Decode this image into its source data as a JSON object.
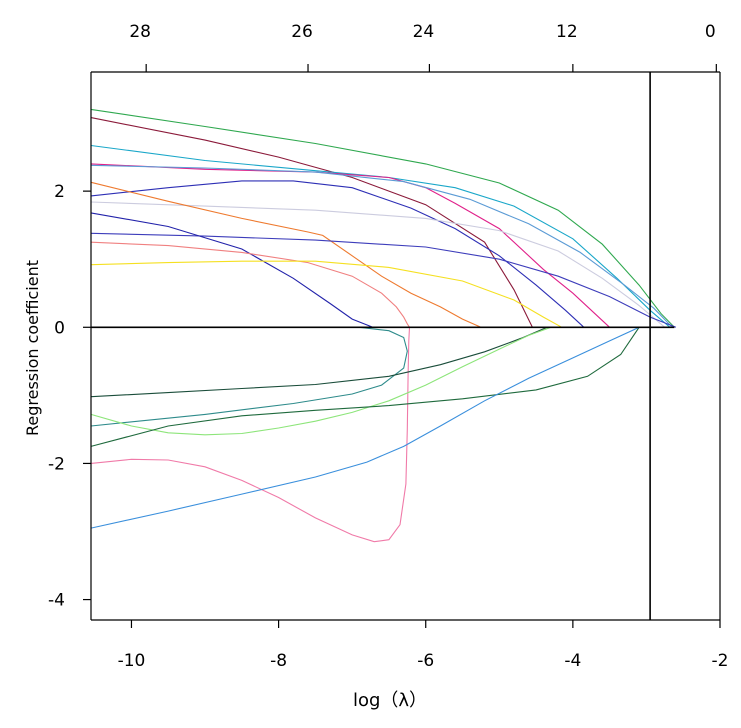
{
  "chart_data": {
    "type": "line",
    "title": "",
    "xlabel": "log（λ）",
    "ylabel": "Regression coefficient",
    "xlim": [
      -10.55,
      -2.0
    ],
    "ylim": [
      -4.3,
      3.75
    ],
    "x_ticks": [
      -10,
      -8,
      -6,
      -4,
      -2
    ],
    "y_ticks": [
      -4,
      -2,
      0,
      2
    ],
    "top_axis_ticks": [
      {
        "x": -9.8,
        "label": "28"
      },
      {
        "x": -7.6,
        "label": "26"
      },
      {
        "x": -5.95,
        "label": "24"
      },
      {
        "x": -4.0,
        "label": "12"
      },
      {
        "x": -2.05,
        "label": "0"
      }
    ],
    "vertical_reference_x": -2.95,
    "zero_line_y": 0,
    "grid": false,
    "legend": "none",
    "series": [
      {
        "color": "#2fa84f",
        "x": [
          -10.55,
          -9.0,
          -7.5,
          -6.0,
          -5.0,
          -4.2,
          -3.6,
          -3.1,
          -2.8,
          -2.62
        ],
        "y": [
          3.2,
          2.95,
          2.7,
          2.4,
          2.12,
          1.72,
          1.22,
          0.62,
          0.2,
          0.0
        ]
      },
      {
        "color": "#8b1a3a",
        "x": [
          -10.55,
          -9.0,
          -8.0,
          -7.0,
          -6.0,
          -5.2,
          -4.8,
          -4.55
        ],
        "y": [
          3.08,
          2.75,
          2.5,
          2.2,
          1.8,
          1.25,
          0.55,
          0.0
        ]
      },
      {
        "color": "#1aa7c9",
        "x": [
          -10.55,
          -9.0,
          -7.5,
          -6.5,
          -5.6,
          -4.8,
          -4.0,
          -3.4,
          -2.95,
          -2.68
        ],
        "y": [
          2.67,
          2.45,
          2.3,
          2.2,
          2.05,
          1.78,
          1.3,
          0.72,
          0.25,
          0.0
        ]
      },
      {
        "color": "#e0218a",
        "x": [
          -10.55,
          -9.0,
          -7.5,
          -6.5,
          -6.0,
          -5.6,
          -5.0,
          -4.4,
          -4.0,
          -3.5
        ],
        "y": [
          2.4,
          2.32,
          2.28,
          2.2,
          2.05,
          1.82,
          1.45,
          0.85,
          0.5,
          0.0
        ]
      },
      {
        "color": "#5b9bd5",
        "x": [
          -10.55,
          -9.0,
          -7.5,
          -6.3,
          -5.4,
          -4.6,
          -3.9,
          -3.3,
          -2.9,
          -2.65
        ],
        "y": [
          2.38,
          2.34,
          2.28,
          2.14,
          1.88,
          1.52,
          1.1,
          0.62,
          0.28,
          0.0
        ]
      },
      {
        "color": "#2d2fb5",
        "x": [
          -10.55,
          -9.5,
          -8.5,
          -7.8,
          -7.0,
          -6.2,
          -5.6,
          -5.0,
          -4.5,
          -4.1,
          -3.85
        ],
        "y": [
          1.93,
          2.05,
          2.15,
          2.15,
          2.05,
          1.75,
          1.45,
          1.05,
          0.62,
          0.25,
          0.0
        ]
      },
      {
        "color": "#ccccdf",
        "x": [
          -10.55,
          -9.0,
          -7.5,
          -6.0,
          -5.0,
          -4.2,
          -3.6,
          -3.1,
          -2.75
        ],
        "y": [
          1.84,
          1.78,
          1.72,
          1.6,
          1.42,
          1.12,
          0.72,
          0.32,
          0.0
        ]
      },
      {
        "color": "#ee7a2f",
        "x": [
          -10.55,
          -9.5,
          -8.5,
          -7.6,
          -7.4,
          -7.0,
          -6.6,
          -6.2,
          -5.8,
          -5.5,
          -5.25
        ],
        "y": [
          2.13,
          1.85,
          1.6,
          1.4,
          1.35,
          1.05,
          0.75,
          0.5,
          0.3,
          0.12,
          0.0
        ]
      },
      {
        "color": "#3d3dbb",
        "x": [
          -10.55,
          -9.0,
          -7.5,
          -6.0,
          -5.0,
          -4.2,
          -3.5,
          -2.95,
          -2.6
        ],
        "y": [
          1.38,
          1.34,
          1.28,
          1.18,
          1.0,
          0.75,
          0.45,
          0.15,
          0.0
        ]
      },
      {
        "color": "#2222aa",
        "x": [
          -10.55,
          -9.5,
          -8.5,
          -7.8,
          -7.3,
          -7.0,
          -6.72
        ],
        "y": [
          1.68,
          1.48,
          1.15,
          0.72,
          0.35,
          0.12,
          0.0
        ]
      },
      {
        "color": "#f08080",
        "x": [
          -10.55,
          -9.5,
          -8.5,
          -7.6,
          -7.0,
          -6.6,
          -6.4,
          -6.3,
          -6.25,
          -6.22
        ],
        "y": [
          1.25,
          1.2,
          1.1,
          0.95,
          0.75,
          0.5,
          0.3,
          0.15,
          0.05,
          0.0
        ]
      },
      {
        "color": "#f5e021",
        "x": [
          -10.55,
          -9.5,
          -8.5,
          -7.5,
          -6.5,
          -5.5,
          -4.8,
          -4.4,
          -4.15
        ],
        "y": [
          0.92,
          0.95,
          0.97,
          0.97,
          0.88,
          0.68,
          0.4,
          0.15,
          0.0
        ]
      },
      {
        "color": "#2e8b8b",
        "x": [
          -10.55,
          -9.0,
          -7.8,
          -7.0,
          -6.6,
          -6.3,
          -6.25,
          -6.3,
          -6.5,
          -6.9
        ],
        "y": [
          -1.45,
          -1.28,
          -1.12,
          -0.98,
          -0.85,
          -0.6,
          -0.35,
          -0.15,
          -0.05,
          0.0
        ]
      },
      {
        "color": "#f07aa8",
        "x": [
          -10.55,
          -10.0,
          -9.5,
          -9.0,
          -8.5,
          -8.0,
          -7.5,
          -7.0,
          -6.7,
          -6.5,
          -6.35,
          -6.27,
          -6.25,
          -6.24,
          -6.23,
          -6.22
        ],
        "y": [
          -2.0,
          -1.94,
          -1.95,
          -2.05,
          -2.25,
          -2.5,
          -2.8,
          -3.05,
          -3.15,
          -3.12,
          -2.9,
          -2.3,
          -1.5,
          -0.7,
          -0.2,
          0.0
        ]
      },
      {
        "color": "#1a4d3a",
        "x": [
          -10.55,
          -9.5,
          -8.5,
          -7.5,
          -6.5,
          -5.8,
          -5.2,
          -4.7,
          -4.35
        ],
        "y": [
          -1.02,
          -0.96,
          -0.9,
          -0.84,
          -0.72,
          -0.55,
          -0.36,
          -0.16,
          0.0
        ]
      },
      {
        "color": "#8de57a",
        "x": [
          -10.55,
          -10.0,
          -9.5,
          -9.0,
          -8.5,
          -8.0,
          -7.5,
          -7.0,
          -6.5,
          -6.0,
          -5.5,
          -5.0,
          -4.6,
          -4.3
        ],
        "y": [
          -1.28,
          -1.45,
          -1.55,
          -1.58,
          -1.56,
          -1.48,
          -1.38,
          -1.25,
          -1.08,
          -0.85,
          -0.58,
          -0.32,
          -0.12,
          0.0
        ]
      },
      {
        "color": "#1f6a3d",
        "x": [
          -10.55,
          -9.5,
          -8.5,
          -7.5,
          -6.5,
          -5.5,
          -4.5,
          -3.8,
          -3.35,
          -3.1
        ],
        "y": [
          -1.75,
          -1.45,
          -1.3,
          -1.22,
          -1.15,
          -1.05,
          -0.92,
          -0.72,
          -0.4,
          0.0
        ]
      },
      {
        "color": "#3a8fdc",
        "x": [
          -10.55,
          -9.5,
          -8.5,
          -7.5,
          -6.8,
          -6.3,
          -5.8,
          -5.2,
          -4.6,
          -4.0,
          -3.5,
          -3.1
        ],
        "y": [
          -2.95,
          -2.7,
          -2.45,
          -2.2,
          -1.98,
          -1.75,
          -1.45,
          -1.08,
          -0.75,
          -0.45,
          -0.2,
          0.0
        ]
      }
    ]
  }
}
